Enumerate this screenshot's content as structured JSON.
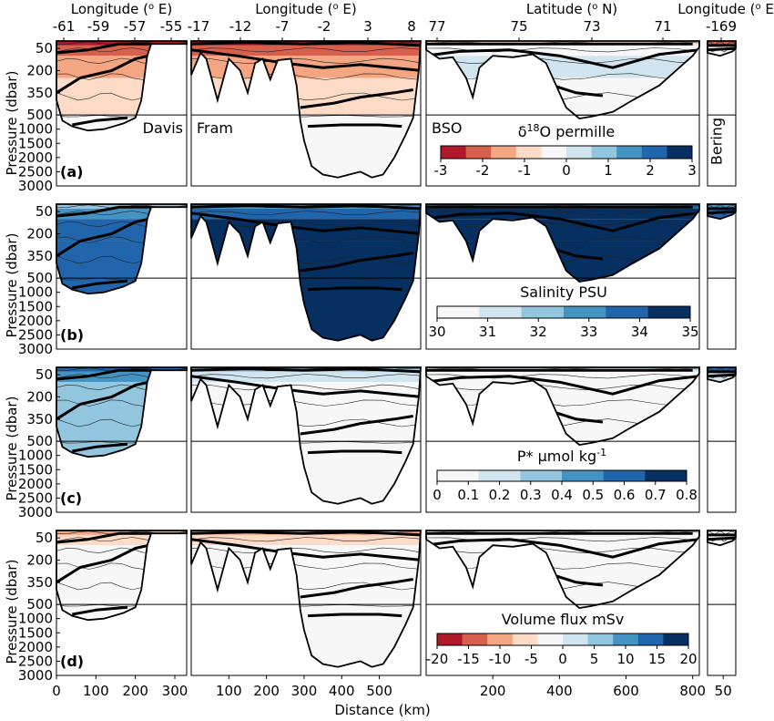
{
  "chart_data": {
    "type": "heatmap",
    "top_axes": [
      {
        "id": "davis",
        "title": "Longitude (°E)",
        "title_parts": [
          "Longitude (",
          "o",
          " E)"
        ],
        "ticks": [
          "-61",
          "-59",
          "-57",
          "-55"
        ]
      },
      {
        "id": "fram",
        "title": "Longitude (°E)",
        "title_parts": [
          "Longitude (",
          "o",
          " E)"
        ],
        "ticks": [
          "-17",
          "-12",
          "-7",
          "-2",
          "3",
          "8"
        ]
      },
      {
        "id": "bso",
        "title": "Latitude (°N)",
        "title_parts": [
          "Latitude (",
          "o",
          " N)"
        ],
        "ticks": [
          "77",
          "75",
          "73",
          "71"
        ]
      },
      {
        "id": "bering",
        "title": "Longitude (°E)",
        "title_parts": [
          "Longitude (",
          "o",
          " E)"
        ],
        "ticks": [
          "-169"
        ]
      }
    ],
    "sections": [
      {
        "id": "davis",
        "name": "Davis",
        "distance_ticks": [
          0,
          100,
          200,
          300
        ],
        "xlim": [
          0,
          330
        ]
      },
      {
        "id": "fram",
        "name": "Fram",
        "distance_ticks": [
          100,
          200,
          300,
          400,
          500
        ],
        "xlim": [
          0,
          610
        ]
      },
      {
        "id": "bso",
        "name": "BSO",
        "distance_ticks": [
          200,
          400,
          600,
          800
        ],
        "xlim": [
          0,
          820
        ]
      },
      {
        "id": "bering",
        "name": "Bering",
        "distance_ticks": [
          50
        ],
        "xlim": [
          0,
          90
        ]
      }
    ],
    "y_axis": {
      "label": "Pressure (dbar)",
      "ticks": [
        50,
        200,
        350,
        500,
        1000,
        1500,
        2000,
        2500,
        3000
      ],
      "ylim": [
        0,
        3000
      ],
      "scale": "piecewise: 0-500 stretched, 500-3000 linear",
      "invert": true
    },
    "x_axis": {
      "label": "Distance (km)"
    },
    "panels": [
      {
        "tag": "(a)",
        "variable_parts": [
          "δ",
          "18",
          "O permille"
        ],
        "variable": "δ18O permille",
        "colormap": "red-white-blue",
        "cbar_ticks": [
          "-3",
          "-2",
          "-1",
          "0",
          "1",
          "2",
          "3"
        ],
        "cbar_range": [
          -3,
          3
        ],
        "cbar_labels_below": false
      },
      {
        "tag": "(b)",
        "variable": "Salinity PSU",
        "colormap": "white-blue",
        "cbar_ticks": [
          "30",
          "31",
          "32",
          "33",
          "34",
          "35"
        ],
        "cbar_range": [
          30,
          35
        ],
        "cbar_labels_below": true
      },
      {
        "tag": "(c)",
        "variable_parts": [
          "P* µmol kg",
          "-1",
          ""
        ],
        "variable": "P* µmol kg-1",
        "colormap": "white-blue",
        "cbar_ticks": [
          "0",
          "0.1",
          "0.2",
          "0.3",
          "0.4",
          "0.5",
          "0.6",
          "0.7",
          "0.8"
        ],
        "cbar_range": [
          0,
          0.8
        ],
        "cbar_labels_below": true
      },
      {
        "tag": "(d)",
        "variable": "Volume flux mSv",
        "colormap": "red-white-blue",
        "cbar_ticks": [
          "-20",
          "-15",
          "-10",
          "-5",
          "0",
          "5",
          "10",
          "15",
          "20"
        ],
        "cbar_range": [
          -20,
          20
        ],
        "cbar_labels_below": true
      }
    ],
    "colors": {
      "deep_red": "#b2182b",
      "red": "#d6604d",
      "salmon": "#f4a582",
      "peach": "#fddbc7",
      "white": "#f7f7f7",
      "pale_blue": "#d1e5f0",
      "light_blue": "#92c5de",
      "mid_blue": "#4393c3",
      "blue": "#2166ac",
      "dark_blue": "#053061"
    }
  }
}
